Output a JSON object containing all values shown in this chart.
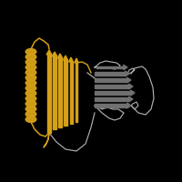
{
  "background_color": "#000000",
  "domain_color": "#D4A017",
  "other_color": "#707070",
  "other_outline_color": "#B0B0B0",
  "figsize": [
    2.0,
    2.0
  ],
  "dpi": 100
}
